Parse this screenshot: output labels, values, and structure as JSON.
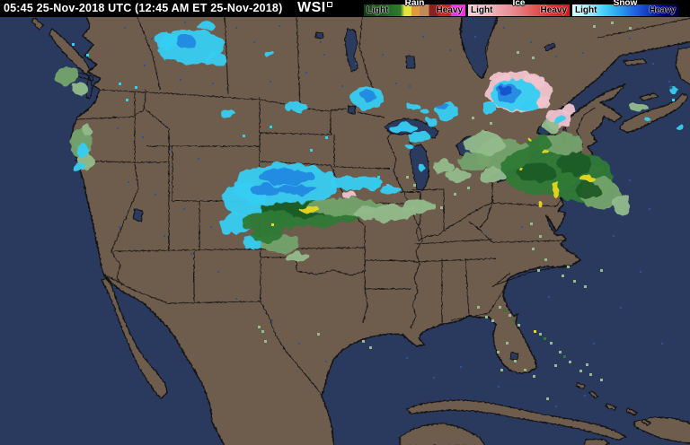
{
  "header": {
    "timestamp": "05:45 25-Nov-2018 UTC  (12:45 AM ET 25-Nov-2018)",
    "logo": "WSI"
  },
  "legend": {
    "rain": {
      "title": "Rain",
      "light": "Light",
      "heavy": "Heavy",
      "stops": [
        "#143f14 0%",
        "#1d571d 16%",
        "#27702a 28%",
        "#2e7a2e 36%",
        "#e4e43a 40%",
        "#e4e43a 47%",
        "#e09a3a 47%",
        "#e09a3a 55%",
        "#bf8a58 55%",
        "#bf8a58 64%",
        "#8c1f1f 64%",
        "#8c1f1f 73%",
        "#cc2222 73%",
        "#cc2222 86%",
        "#ee30dd 86%",
        "#ee30dd 100%"
      ]
    },
    "ice": {
      "title": "Ice",
      "light": "Light",
      "heavy": "Heavy",
      "stops": [
        "#f3cfd3 0%",
        "#eeb3ba 22%",
        "#e98f96 42%",
        "#e26060 62%",
        "#df2f2f 82%",
        "#da1717 100%"
      ]
    },
    "snow": {
      "title": "Snow",
      "light": "Light",
      "heavy": "Heavy",
      "stops": [
        "#d9ffff 0%",
        "#9feeff 14%",
        "#49d2f8 29%",
        "#2aa2f0 44%",
        "#2162e0 59%",
        "#1138c0 72%",
        "#000092 85%",
        "#00004a 100%"
      ]
    }
  },
  "map": {
    "colors": {
      "land": "#6e5c4e",
      "water": "#2a3a5e",
      "border": "#121212",
      "noise": "#31519e"
    },
    "radar_palette": {
      "cyan": "#35cdf2",
      "blue": "#2489e2",
      "deepblue": "#1152cc",
      "pink": "#f0c3cd",
      "green_dark": "#1d5a26",
      "green": "#2e7a35",
      "green_light": "#74a46c",
      "green_pale": "#94bb8b",
      "yellow": "#e8d81e"
    },
    "cells": [
      [
        "pink",
        578,
        103,
        36,
        22
      ],
      [
        "pink",
        556,
        86,
        12,
        6
      ],
      [
        "pink",
        595,
        90,
        12,
        7
      ],
      [
        "pink",
        604,
        114,
        9,
        6
      ],
      [
        "pink",
        622,
        133,
        15,
        11
      ],
      [
        "pink",
        632,
        122,
        8,
        6
      ],
      [
        "cyan",
        573,
        106,
        27,
        17
      ],
      [
        "blue",
        565,
        104,
        14,
        10
      ],
      [
        "deepblue",
        562,
        101,
        7,
        5
      ],
      [
        "cyan",
        545,
        121,
        9,
        6
      ],
      [
        "cyan",
        590,
        118,
        10,
        6
      ],
      [
        "cyan",
        623,
        134,
        5,
        3
      ],
      [
        "cyan",
        409,
        109,
        19,
        13
      ],
      [
        "blue",
        410,
        106,
        9,
        6
      ],
      [
        "cyan",
        461,
        119,
        7,
        4
      ],
      [
        "cyan",
        472,
        124,
        4,
        3
      ],
      [
        "cyan",
        213,
        52,
        37,
        19
      ],
      [
        "cyan",
        186,
        46,
        14,
        9
      ],
      [
        "blue",
        206,
        47,
        12,
        7
      ],
      [
        "cyan",
        240,
        66,
        12,
        7
      ],
      [
        "cyan",
        231,
        29,
        9,
        5
      ],
      [
        "cyan",
        253,
        127,
        8,
        4
      ],
      [
        "cyan",
        300,
        61,
        5,
        3
      ],
      [
        "cyan",
        330,
        119,
        13,
        5
      ],
      [
        "cyan",
        449,
        143,
        16,
        6
      ],
      [
        "cyan",
        467,
        153,
        12,
        5
      ],
      [
        "cyan",
        497,
        124,
        13,
        11
      ],
      [
        "blue",
        493,
        118,
        6,
        4
      ],
      [
        "cyan",
        479,
        135,
        8,
        4
      ],
      [
        "cyan",
        455,
        163,
        5,
        3
      ],
      [
        "cyan",
        470,
        186,
        5,
        4
      ],
      [
        "cyan",
        318,
        207,
        57,
        25
      ],
      [
        "cyan",
        272,
        222,
        26,
        18
      ],
      [
        "cyan",
        263,
        249,
        17,
        13
      ],
      [
        "cyan",
        283,
        270,
        11,
        8
      ],
      [
        "cyan",
        398,
        204,
        30,
        8
      ],
      [
        "cyan",
        435,
        212,
        12,
        5
      ],
      [
        "blue",
        318,
        197,
        30,
        9
      ],
      [
        "blue",
        295,
        212,
        16,
        7
      ],
      [
        "blue",
        330,
        212,
        22,
        6
      ],
      [
        "green",
        345,
        238,
        58,
        14
      ],
      [
        "green_dark",
        330,
        234,
        40,
        9
      ],
      [
        "green",
        300,
        247,
        30,
        12
      ],
      [
        "green_light",
        385,
        231,
        45,
        10
      ],
      [
        "green_pale",
        430,
        237,
        35,
        9
      ],
      [
        "green_light",
        312,
        271,
        22,
        10
      ],
      [
        "green_pale",
        330,
        287,
        13,
        6
      ],
      [
        "green",
        296,
        262,
        18,
        8
      ],
      [
        "green_pale",
        465,
        230,
        18,
        7
      ],
      [
        "yellow",
        344,
        233,
        11,
        3
      ],
      [
        "pink",
        388,
        217,
        8,
        4
      ],
      [
        "green_light",
        560,
        172,
        30,
        18
      ],
      [
        "green_pale",
        540,
        160,
        22,
        13
      ],
      [
        "green_light",
        528,
        180,
        18,
        10
      ],
      [
        "green",
        600,
        190,
        42,
        26
      ],
      [
        "green",
        648,
        198,
        34,
        28
      ],
      [
        "green_light",
        668,
        215,
        22,
        18
      ],
      [
        "green_light",
        625,
        160,
        25,
        12
      ],
      [
        "green_dark",
        598,
        192,
        22,
        11
      ],
      [
        "green_dark",
        640,
        182,
        20,
        13
      ],
      [
        "green_dark",
        655,
        212,
        14,
        9
      ],
      [
        "green",
        600,
        160,
        14,
        8
      ],
      [
        "green_pale",
        548,
        195,
        14,
        8
      ],
      [
        "green_pale",
        510,
        196,
        12,
        8
      ],
      [
        "green_pale",
        492,
        186,
        12,
        8
      ],
      [
        "green_pale",
        692,
        228,
        10,
        10
      ],
      [
        "green_pale",
        612,
        140,
        12,
        7
      ],
      [
        "yellow",
        618,
        211,
        4,
        8
      ],
      [
        "yellow",
        655,
        199,
        9,
        4
      ],
      [
        "yellow",
        590,
        155,
        3,
        2
      ],
      [
        "yellow",
        608,
        170,
        3,
        2
      ],
      [
        "yellow",
        580,
        188,
        2,
        2
      ],
      [
        "yellow",
        600,
        228,
        2,
        3
      ],
      [
        "green_light",
        74,
        85,
        13,
        10
      ],
      [
        "green_pale",
        88,
        99,
        9,
        6
      ],
      [
        "green_light",
        90,
        160,
        12,
        16
      ],
      [
        "green_pale",
        95,
        180,
        10,
        9
      ],
      [
        "cyan",
        93,
        168,
        6,
        8
      ],
      [
        "cyan",
        87,
        186,
        5,
        4
      ],
      [
        "green_pale",
        97,
        145,
        6,
        5
      ],
      [
        "green_pale",
        712,
        120,
        10,
        4
      ],
      [
        "cyan",
        750,
        100,
        5,
        4
      ],
      [
        "cyan",
        756,
        142,
        4,
        3
      ],
      [
        "cyan",
        720,
        133,
        5,
        3
      ]
    ],
    "specks": [
      [
        "green_pale",
        555,
        341
      ],
      [
        "green_pale",
        566,
        350
      ],
      [
        "green_pale",
        547,
        356
      ],
      [
        "green_pale",
        576,
        361
      ],
      [
        "green_pale",
        600,
        371
      ],
      [
        "green_pale",
        612,
        381
      ],
      [
        "green_pale",
        622,
        391
      ],
      [
        "green_pale",
        633,
        402
      ],
      [
        "green_pale",
        645,
        412
      ],
      [
        "green_pale",
        652,
        405
      ],
      [
        "green_pale",
        617,
        406
      ],
      [
        "green_pale",
        563,
        381
      ],
      [
        "green_pale",
        553,
        391
      ],
      [
        "green_pale",
        572,
        401
      ],
      [
        "green_pale",
        583,
        411
      ],
      [
        "green_pale",
        557,
        411
      ],
      [
        "green_pale",
        593,
        418
      ],
      [
        "green_pale",
        608,
        443
      ],
      [
        "green_pale",
        656,
        416
      ],
      [
        "green_pale",
        668,
        422
      ],
      [
        "green_pale",
        540,
        352
      ],
      [
        "green_pale",
        531,
        341
      ],
      [
        "green_pale",
        625,
        306
      ],
      [
        "green_pale",
        638,
        312
      ],
      [
        "green_pale",
        650,
        318
      ],
      [
        "green_pale",
        631,
        296
      ],
      [
        "green_pale",
        668,
        300
      ],
      [
        "green_pale",
        403,
        379
      ],
      [
        "green_pale",
        411,
        386
      ],
      [
        "green_pale",
        353,
        371
      ],
      [
        "green_pale",
        291,
        368
      ],
      [
        "green_pale",
        294,
        379
      ],
      [
        "green_pale",
        287,
        363
      ],
      [
        "green_pale",
        590,
        248
      ],
      [
        "green_pale",
        600,
        262
      ],
      [
        "green_pale",
        592,
        276
      ],
      [
        "green_pale",
        606,
        288
      ],
      [
        "green_pale",
        598,
        300
      ],
      [
        "green_pale",
        545,
        136
      ],
      [
        "green_pale",
        538,
        146
      ],
      [
        "green_pale",
        525,
        130
      ],
      [
        "green_pale",
        460,
        205
      ],
      [
        "green_pale",
        452,
        196
      ],
      [
        "green_pale",
        520,
        208
      ],
      [
        "green_pale",
        505,
        215
      ],
      [
        "green_pale",
        490,
        230
      ],
      [
        "green_pale",
        680,
        24
      ],
      [
        "green_pale",
        700,
        30
      ],
      [
        "green_pale",
        660,
        28
      ],
      [
        "green_pale",
        575,
        57
      ],
      [
        "green_pale",
        592,
        63
      ],
      [
        "green",
        560,
        345
      ],
      [
        "green",
        605,
        376
      ],
      [
        "green",
        627,
        396
      ],
      [
        "green",
        570,
        356
      ],
      [
        "cyan",
        362,
        152
      ],
      [
        "cyan",
        345,
        166
      ],
      [
        "cyan",
        300,
        140
      ],
      [
        "cyan",
        270,
        150
      ],
      [
        "cyan",
        150,
        96
      ],
      [
        "cyan",
        140,
        110
      ],
      [
        "cyan",
        132,
        92
      ],
      [
        "cyan",
        96,
        60
      ],
      [
        "cyan",
        80,
        48
      ],
      [
        "cyan",
        430,
        205
      ],
      [
        "cyan",
        420,
        196
      ],
      [
        "cyan",
        748,
        110
      ],
      [
        "yellow",
        594,
        368
      ],
      [
        "yellow",
        302,
        249
      ]
    ],
    "noise": [
      [
        138,
        30
      ],
      [
        168,
        42
      ],
      [
        205,
        24
      ],
      [
        262,
        30
      ],
      [
        282,
        46
      ],
      [
        310,
        28
      ],
      [
        356,
        46
      ],
      [
        300,
        90
      ],
      [
        340,
        80
      ],
      [
        380,
        95
      ],
      [
        425,
        60
      ],
      [
        440,
        92
      ],
      [
        470,
        40
      ],
      [
        500,
        55
      ],
      [
        528,
        40
      ],
      [
        560,
        30
      ],
      [
        590,
        46
      ],
      [
        618,
        62
      ],
      [
        648,
        58
      ],
      [
        700,
        42
      ],
      [
        726,
        70
      ],
      [
        744,
        90
      ],
      [
        160,
        72
      ],
      [
        200,
        88
      ],
      [
        236,
        92
      ],
      [
        130,
        142
      ],
      [
        158,
        152
      ],
      [
        190,
        166
      ],
      [
        220,
        176
      ],
      [
        142,
        202
      ],
      [
        172,
        216
      ],
      [
        204,
        232
      ],
      [
        132,
        252
      ],
      [
        234,
        252
      ],
      [
        252,
        222
      ],
      [
        182,
        262
      ],
      [
        212,
        282
      ],
      [
        242,
        302
      ],
      [
        262,
        332
      ],
      [
        302,
        356
      ],
      [
        332,
        382
      ],
      [
        362,
        402
      ],
      [
        452,
        398
      ],
      [
        482,
        420
      ],
      [
        512,
        408
      ],
      [
        554,
        430
      ],
      [
        610,
        330
      ],
      [
        580,
        252
      ],
      [
        660,
        382
      ],
      [
        690,
        342
      ],
      [
        712,
        302
      ],
      [
        736,
        382
      ],
      [
        650,
        440
      ],
      [
        618,
        452
      ],
      [
        700,
        200
      ],
      [
        722,
        232
      ],
      [
        682,
        262
      ],
      [
        360,
        60
      ],
      [
        395,
        70
      ],
      [
        455,
        95
      ]
    ]
  }
}
